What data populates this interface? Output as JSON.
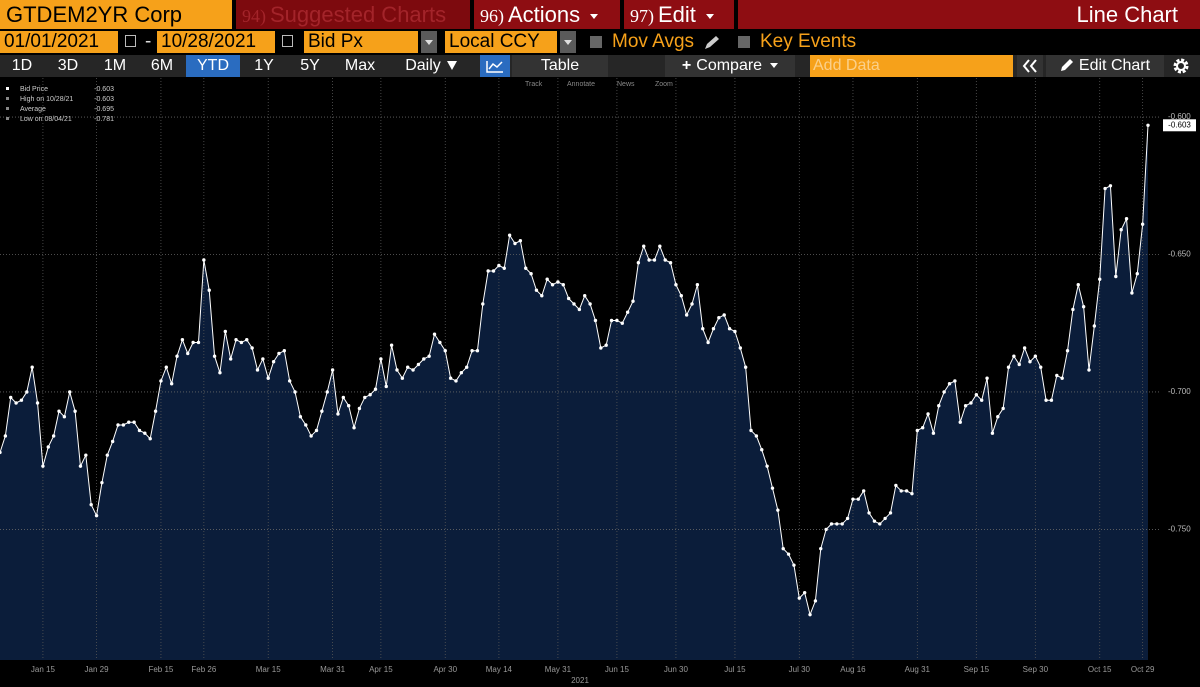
{
  "header": {
    "security": "GTDEM2YR Corp",
    "suggested_num": "94)",
    "suggested": "Suggested Charts",
    "actions_num": "96)",
    "actions": "Actions",
    "edit_num": "97)",
    "edit": "Edit",
    "view": "Line Chart"
  },
  "controls": {
    "start_date": "01/01/2021",
    "date_sep": "-",
    "end_date": "10/28/2021",
    "field": "Bid Px",
    "currency": "Local CCY",
    "mov_avgs": "Mov Avgs",
    "key_events": "Key Events"
  },
  "toolbar": {
    "periods": [
      "1D",
      "3D",
      "1M",
      "6M",
      "YTD",
      "1Y",
      "5Y",
      "Max"
    ],
    "frequency": "Daily",
    "table": "Table",
    "compare": "Compare",
    "add_data": "Add Data",
    "edit_chart": "Edit Chart",
    "tools": [
      "Track",
      "Annotate",
      "News",
      "Zoom"
    ]
  },
  "chart_data": {
    "type": "line",
    "xlabel": "2021",
    "color": "#ffffff",
    "fill": "#0b1d3a",
    "grid": true,
    "stats": [
      {
        "label": "Bid Price",
        "value": -0.603
      },
      {
        "label": "High on 10/28/21",
        "value": -0.603
      },
      {
        "label": "Average",
        "value": -0.695
      },
      {
        "label": "Low on 08/04/21",
        "value": -0.781
      }
    ],
    "ylim": [
      -0.7975,
      -0.5858
    ],
    "yticks": [
      {
        "value": -0.6,
        "label": "-0.600"
      },
      {
        "value": -0.65,
        "label": "-0.650"
      },
      {
        "value": -0.7,
        "label": "-0.700"
      },
      {
        "value": -0.75,
        "label": "-0.750"
      }
    ],
    "categories": [
      null,
      null,
      null,
      null,
      null,
      null,
      null,
      null,
      "Jan 15",
      null,
      null,
      null,
      null,
      null,
      null,
      null,
      null,
      null,
      "Jan 29",
      null,
      null,
      null,
      null,
      null,
      null,
      null,
      null,
      null,
      null,
      null,
      "Feb 15",
      null,
      null,
      null,
      null,
      null,
      null,
      null,
      "Feb 26",
      null,
      null,
      null,
      null,
      null,
      null,
      null,
      null,
      null,
      null,
      null,
      "Mar 15",
      null,
      null,
      null,
      null,
      null,
      null,
      null,
      null,
      null,
      null,
      null,
      "Mar 31",
      null,
      null,
      null,
      null,
      null,
      null,
      null,
      null,
      "Apr 15",
      null,
      null,
      null,
      null,
      null,
      null,
      null,
      null,
      null,
      null,
      null,
      "Apr 30",
      null,
      null,
      null,
      null,
      null,
      null,
      null,
      null,
      null,
      "May 14",
      null,
      null,
      null,
      null,
      null,
      null,
      null,
      null,
      null,
      null,
      "May 31",
      null,
      null,
      null,
      null,
      null,
      null,
      null,
      null,
      null,
      null,
      "Jun 15",
      null,
      null,
      null,
      null,
      null,
      null,
      null,
      null,
      null,
      null,
      "Jun 30",
      null,
      null,
      null,
      null,
      null,
      null,
      null,
      null,
      null,
      null,
      "Jul 15",
      null,
      null,
      null,
      null,
      null,
      null,
      null,
      null,
      null,
      null,
      null,
      "Jul 30",
      null,
      null,
      null,
      null,
      null,
      null,
      null,
      null,
      null,
      "Aug 16",
      null,
      null,
      null,
      null,
      null,
      null,
      null,
      null,
      null,
      null,
      null,
      "Aug 31",
      null,
      null,
      null,
      null,
      null,
      null,
      null,
      null,
      null,
      null,
      "Sep 15",
      null,
      null,
      null,
      null,
      null,
      null,
      null,
      null,
      null,
      null,
      "Sep 30",
      null,
      null,
      null,
      null,
      null,
      null,
      null,
      null,
      null,
      null,
      null,
      "Oct 15",
      null,
      null,
      null,
      null,
      null,
      null,
      null,
      "Oct 29",
      null
    ],
    "values": [
      -0.722,
      -0.716,
      -0.702,
      -0.704,
      -0.703,
      -0.7,
      -0.691,
      -0.704,
      -0.727,
      -0.72,
      -0.716,
      -0.707,
      -0.709,
      -0.7,
      -0.707,
      -0.727,
      -0.723,
      -0.741,
      -0.745,
      -0.733,
      -0.723,
      -0.718,
      -0.712,
      -0.712,
      -0.711,
      -0.711,
      -0.714,
      -0.715,
      -0.717,
      -0.707,
      -0.696,
      -0.691,
      -0.697,
      -0.687,
      -0.681,
      -0.686,
      -0.682,
      -0.682,
      -0.652,
      -0.663,
      -0.687,
      -0.693,
      -0.678,
      -0.688,
      -0.681,
      -0.682,
      -0.681,
      -0.684,
      -0.692,
      -0.688,
      -0.695,
      -0.689,
      -0.686,
      -0.685,
      -0.696,
      -0.7,
      -0.709,
      -0.712,
      -0.716,
      -0.714,
      -0.707,
      -0.7,
      -0.692,
      -0.708,
      -0.702,
      -0.705,
      -0.713,
      -0.706,
      -0.702,
      -0.701,
      -0.699,
      -0.688,
      -0.698,
      -0.683,
      -0.692,
      -0.695,
      -0.691,
      -0.692,
      -0.69,
      -0.688,
      -0.687,
      -0.679,
      -0.682,
      -0.685,
      -0.695,
      -0.696,
      -0.693,
      -0.691,
      -0.685,
      -0.685,
      -0.668,
      -0.656,
      -0.656,
      -0.654,
      -0.655,
      -0.643,
      -0.646,
      -0.645,
      -0.655,
      -0.657,
      -0.663,
      -0.665,
      -0.659,
      -0.661,
      -0.66,
      -0.661,
      -0.666,
      -0.668,
      -0.67,
      -0.665,
      -0.668,
      -0.674,
      -0.684,
      -0.683,
      -0.674,
      -0.674,
      -0.675,
      -0.671,
      -0.667,
      -0.653,
      -0.647,
      -0.652,
      -0.652,
      -0.647,
      -0.652,
      -0.653,
      -0.661,
      -0.665,
      -0.672,
      -0.668,
      -0.661,
      -0.677,
      -0.682,
      -0.677,
      -0.673,
      -0.672,
      -0.677,
      -0.678,
      -0.684,
      -0.691,
      -0.714,
      -0.716,
      -0.721,
      -0.727,
      -0.735,
      -0.743,
      -0.757,
      -0.759,
      -0.763,
      -0.775,
      -0.773,
      -0.781,
      -0.776,
      -0.757,
      -0.75,
      -0.748,
      -0.748,
      -0.748,
      -0.746,
      -0.739,
      -0.739,
      -0.736,
      -0.744,
      -0.747,
      -0.748,
      -0.746,
      -0.744,
      -0.734,
      -0.736,
      -0.736,
      -0.737,
      -0.714,
      -0.713,
      -0.708,
      -0.715,
      -0.705,
      -0.7,
      -0.697,
      -0.696,
      -0.711,
      -0.705,
      -0.704,
      -0.701,
      -0.703,
      -0.695,
      -0.715,
      -0.709,
      -0.706,
      -0.691,
      -0.687,
      -0.69,
      -0.684,
      -0.689,
      -0.687,
      -0.691,
      -0.703,
      -0.703,
      -0.694,
      -0.695,
      -0.685,
      -0.67,
      -0.661,
      -0.669,
      -0.692,
      -0.676,
      -0.659,
      -0.626,
      -0.625,
      -0.658,
      -0.641,
      -0.637,
      -0.664,
      -0.657,
      -0.639,
      -0.603
    ]
  }
}
